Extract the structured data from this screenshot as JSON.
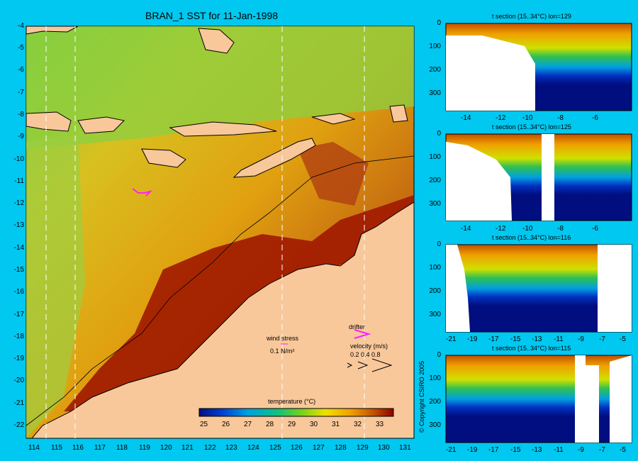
{
  "main_map": {
    "title": "BRAN_1 SST for 11-Jan-1998",
    "lat_ticks": [
      "-4",
      "-5",
      "-6",
      "-7",
      "-8",
      "-9",
      "-10",
      "-11",
      "-12",
      "-13",
      "-14",
      "-15",
      "-16",
      "-17",
      "-18",
      "-19",
      "-20",
      "-21",
      "-22"
    ],
    "lon_ticks": [
      "114",
      "115",
      "116",
      "117",
      "118",
      "119",
      "120",
      "121",
      "122",
      "123",
      "124",
      "125",
      "126",
      "127",
      "128",
      "129",
      "130",
      "131"
    ],
    "wind_stress_label": "wind stress",
    "wind_stress_value": "0.1 N/m²",
    "drifter_label": "drifter",
    "velocity_label": "velocity (m/s)",
    "velocity_scale": "0.2 0.4 0.8",
    "colorbar": {
      "label": "temperature (°C)",
      "ticks": [
        "25",
        "26",
        "27",
        "28",
        "29",
        "30",
        "31",
        "32",
        "33"
      ]
    }
  },
  "sections": [
    {
      "title": "t section (15..34°C) lon=129",
      "x_ticks": [
        "-14",
        "-12",
        "-10",
        "-8",
        "-6"
      ],
      "y_ticks": [
        "0",
        "100",
        "200",
        "300"
      ]
    },
    {
      "title": "t section (15..34°C) lon=125",
      "x_ticks": [
        "-14",
        "-12",
        "-10",
        "-8",
        "-6"
      ],
      "y_ticks": [
        "0",
        "100",
        "200",
        "300"
      ]
    },
    {
      "title": "t section (15..34°C) lon=116",
      "x_ticks": [
        "-21",
        "-19",
        "-17",
        "-15",
        "-13",
        "-11",
        "-9",
        "-7",
        "-5"
      ],
      "y_ticks": [
        "0",
        "100",
        "200",
        "300"
      ]
    },
    {
      "title": "t section (15..34°C) lon=115",
      "x_ticks": [
        "-21",
        "-19",
        "-17",
        "-15",
        "-13",
        "-11",
        "-9",
        "-7",
        "-5"
      ],
      "y_ticks": [
        "0",
        "100",
        "200",
        "300"
      ]
    }
  ],
  "copyright": "© Copyright CSIRO 2005",
  "colors": {
    "background": "#00c8f0",
    "land": "#f8c89a",
    "warm": "#a01800",
    "cold": "#000e80",
    "drifter": "#ff20ff"
  }
}
